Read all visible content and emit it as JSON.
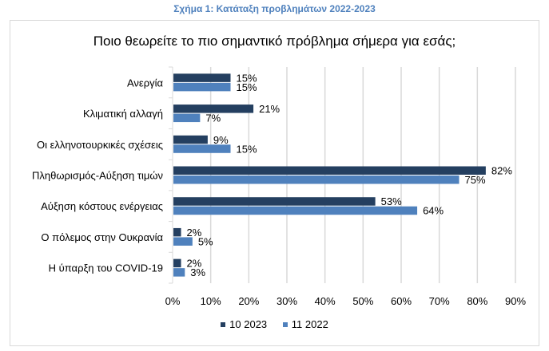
{
  "figure_title": "Σχήμα 1: Κατάταξη προβλημάτων 2022-2023",
  "chart_data": {
    "type": "bar",
    "orientation": "horizontal",
    "title": "Ποιο θεωρείτε το πιο σημαντικό πρόβλημα σήμερα για εσάς;",
    "categories": [
      "Ανεργία",
      "Κλιματική αλλαγή",
      "Οι ελληνοτουρκικές σχέσεις",
      "Πληθωρισμός-Αύξηση τιμών",
      "Αύξηση κόστους ενέργειας",
      "Ο πόλεμος στην Ουκρανία",
      "Η ύπαρξη του COVID-19"
    ],
    "series": [
      {
        "name": "10 2023",
        "color": "#243f60",
        "values": [
          15,
          21,
          9,
          82,
          53,
          2,
          2
        ],
        "labels": [
          "15%",
          "21%",
          "9%",
          "82%",
          "53%",
          "2%",
          "2%"
        ]
      },
      {
        "name": "11 2022",
        "color": "#4f81bd",
        "values": [
          15,
          7,
          15,
          75,
          64,
          5,
          3
        ],
        "labels": [
          "15%",
          "7%",
          "15%",
          "75%",
          "64%",
          "5%",
          "3%"
        ]
      }
    ],
    "xlim": [
      0,
      90
    ],
    "xticks": [
      "0%",
      "10%",
      "20%",
      "30%",
      "40%",
      "50%",
      "60%",
      "70%",
      "80%",
      "90%"
    ],
    "xlabel": "",
    "ylabel": "",
    "grid": true,
    "legend": "bottom"
  }
}
